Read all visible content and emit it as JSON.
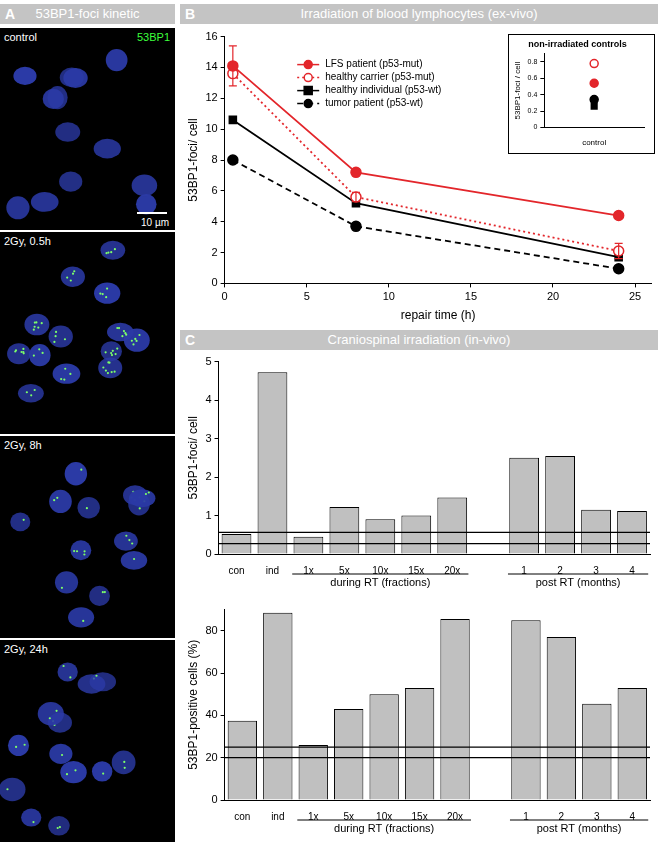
{
  "panel_a": {
    "label": "A",
    "title": "53BP1-foci kinetic",
    "stain": "53BP1",
    "scale_bar": "10 µm",
    "images": [
      "control",
      "2Gy, 0.5h",
      "2Gy, 8h",
      "2Gy, 24h"
    ]
  },
  "chart_data": [
    {
      "panel_label": "B",
      "type": "line",
      "title": "Irradiation of blood lymphocytes (ex-vivo)",
      "x_label": "repair time (h)",
      "y_label": "53BP1-foci/ cell",
      "x": [
        0.5,
        8,
        24
      ],
      "xlim": [
        0,
        26
      ],
      "xticks": [
        0,
        5,
        10,
        15,
        20,
        25
      ],
      "ylim": [
        0,
        16
      ],
      "yticks": [
        0,
        2,
        4,
        6,
        8,
        10,
        12,
        14,
        16
      ],
      "grid": false,
      "legend": "upper center",
      "series": [
        {
          "name": "LFS patient (p53-mut)",
          "color": "#e3262b",
          "marker": "circle",
          "line_style": "solid",
          "values": [
            14.1,
            7.2,
            4.4
          ],
          "errors": [
            1.3,
            null,
            null
          ]
        },
        {
          "name": "healthy carrier (p53-mut)",
          "color": "#e3262b",
          "marker": "circle_open",
          "line_style": "dotted",
          "values": [
            13.6,
            5.6,
            2.1
          ],
          "errors": [
            null,
            0.3,
            0.5
          ]
        },
        {
          "name": "healthy individual (p53-wt)",
          "color": "#000000",
          "marker": "square",
          "line_style": "solid",
          "values": [
            10.6,
            5.2,
            1.7
          ]
        },
        {
          "name": "tumor patient (p53-wt)",
          "color": "#000000",
          "marker": "circle",
          "line_style": "dashed",
          "values": [
            8.0,
            3.7,
            0.95
          ]
        }
      ]
    },
    {
      "type": "scatter",
      "title": "non-irradiated controls",
      "y_label": "53BP1-foci / cell",
      "categories": [
        "control"
      ],
      "ylim": [
        0,
        0.9
      ],
      "yticks": [
        0,
        0.2,
        0.4,
        0.6,
        0.8
      ],
      "grid": false,
      "series": [
        {
          "name": "LFS patient (p53-mut)",
          "color": "#e3262b",
          "marker": "circle",
          "values": [
            0.54
          ]
        },
        {
          "name": "healthy carrier (p53-mut)",
          "color": "#e3262b",
          "marker": "circle_open",
          "values": [
            0.78
          ]
        },
        {
          "name": "healthy individual (p53-wt)",
          "color": "#000000",
          "marker": "square",
          "values": [
            0.26
          ]
        },
        {
          "name": "tumor patient (p53-wt)",
          "color": "#000000",
          "marker": "circle",
          "values": [
            0.34
          ]
        }
      ]
    },
    {
      "panel_label": "C",
      "type": "bar",
      "title": "Craniospinal irradiation (in-vivo)",
      "y_label": "53BP1-foci/ cell",
      "categories": [
        "con",
        "ind",
        "1x",
        "5x",
        "10x",
        "15x",
        "20x",
        null,
        "1",
        "2",
        "3",
        "4"
      ],
      "values": [
        0.52,
        4.72,
        0.45,
        1.22,
        0.9,
        1.0,
        1.47,
        null,
        2.5,
        2.55,
        1.15,
        1.12
      ],
      "color": "#c0c0c0",
      "ylim": [
        0,
        5
      ],
      "yticks": [
        0,
        1,
        2,
        3,
        4,
        5
      ],
      "grid": false,
      "hlines": [
        0.27,
        0.56
      ],
      "groups": [
        {
          "label": "during RT (fractions)",
          "categories": [
            "1x",
            "5x",
            "10x",
            "15x",
            "20x"
          ]
        },
        {
          "label": "post RT (months)",
          "categories": [
            "1",
            "2",
            "3",
            "4"
          ]
        }
      ]
    },
    {
      "type": "bar",
      "y_label": "53BP1-positive cells (%)",
      "categories": [
        "con",
        "ind",
        "1x",
        "5x",
        "10x",
        "15x",
        "20x",
        null,
        "1",
        "2",
        "3",
        "4"
      ],
      "values": [
        37.5,
        88.5,
        26,
        43,
        50,
        53,
        85.5,
        null,
        85,
        77,
        45.5,
        53
      ],
      "color": "#c0c0c0",
      "ylim": [
        0,
        90
      ],
      "yticks": [
        0,
        20,
        40,
        60,
        80
      ],
      "grid": false,
      "hlines": [
        20,
        25
      ],
      "groups": [
        {
          "label": "during RT (fractions)",
          "categories": [
            "1x",
            "5x",
            "10x",
            "15x",
            "20x"
          ]
        },
        {
          "label": "post RT (months)",
          "categories": [
            "1",
            "2",
            "3",
            "4"
          ]
        }
      ]
    }
  ]
}
